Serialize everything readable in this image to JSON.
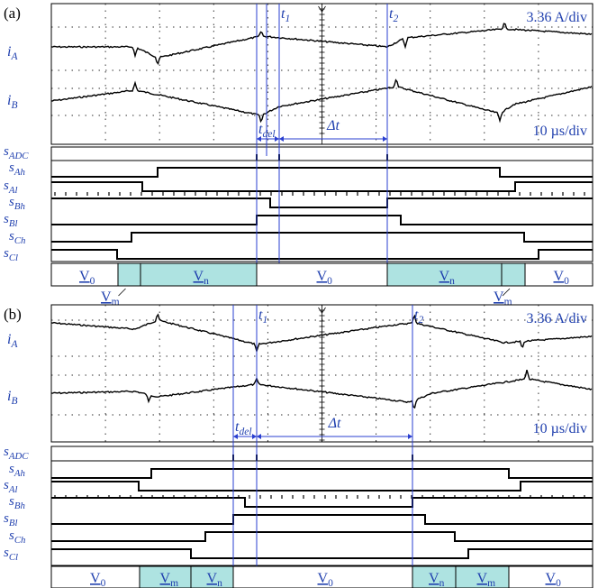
{
  "colors": {
    "signal": "#000000",
    "marker": "#2a3fd0",
    "annotation": "#1f3fae",
    "teal": "#aee3e1",
    "grid": "#000000"
  },
  "panels": [
    {
      "id": "a",
      "label": "(a)",
      "scale_current": "3.36 A/div",
      "scale_time": "10 µs/div",
      "channel_labels": {
        "iA": "i",
        "iA_sub": "A",
        "iB": "i",
        "iB_sub": "B"
      },
      "marker_labels": {
        "t1": "t",
        "t1_sub": "1",
        "t2": "t",
        "t2_sub": "2",
        "tdel": "t",
        "tdel_sub": "del",
        "dt": "Δt"
      },
      "gate_labels": [
        {
          "main": "s",
          "sub": "ADC"
        },
        {
          "main": "s",
          "sub": "Ah"
        },
        {
          "main": "s",
          "sub": "Al"
        },
        {
          "main": "s",
          "sub": "Bh"
        },
        {
          "main": "s",
          "sub": "Bl"
        },
        {
          "main": "s",
          "sub": "Ch"
        },
        {
          "main": "s",
          "sub": "Cl"
        }
      ],
      "vector_segments": [
        {
          "label": "V",
          "sub": "0",
          "teal": false
        },
        {
          "label": "",
          "sub": "",
          "teal": true
        },
        {
          "label": "V",
          "sub": "n",
          "teal": true
        },
        {
          "label": "V",
          "sub": "0",
          "teal": false
        },
        {
          "label": "V",
          "sub": "n",
          "teal": true
        },
        {
          "label": "",
          "sub": "",
          "teal": true
        },
        {
          "label": "V",
          "sub": "0",
          "teal": false
        }
      ],
      "callouts": [
        {
          "label": "V",
          "sub": "m"
        },
        {
          "label": "V",
          "sub": "m"
        }
      ]
    },
    {
      "id": "b",
      "label": "(b)",
      "scale_current": "3.36 A/div",
      "scale_time": "10 µs/div",
      "channel_labels": {
        "iA": "i",
        "iA_sub": "A",
        "iB": "i",
        "iB_sub": "B"
      },
      "marker_labels": {
        "t1": "t",
        "t1_sub": "1",
        "t2": "t",
        "t2_sub": "2",
        "tdel": "t",
        "tdel_sub": "del",
        "dt": "Δt"
      },
      "gate_labels": [
        {
          "main": "s",
          "sub": "ADC"
        },
        {
          "main": "s",
          "sub": "Ah"
        },
        {
          "main": "s",
          "sub": "Al"
        },
        {
          "main": "s",
          "sub": "Bh"
        },
        {
          "main": "s",
          "sub": "Bl"
        },
        {
          "main": "s",
          "sub": "Ch"
        },
        {
          "main": "s",
          "sub": "Cl"
        }
      ],
      "vector_segments": [
        {
          "label": "V",
          "sub": "0",
          "teal": false
        },
        {
          "label": "V",
          "sub": "m",
          "teal": true
        },
        {
          "label": "V",
          "sub": "n",
          "teal": true
        },
        {
          "label": "V",
          "sub": "0",
          "teal": false
        },
        {
          "label": "V",
          "sub": "n",
          "teal": true
        },
        {
          "label": "V",
          "sub": "m",
          "teal": true
        },
        {
          "label": "V",
          "sub": "0",
          "teal": false
        }
      ],
      "callouts": []
    }
  ]
}
